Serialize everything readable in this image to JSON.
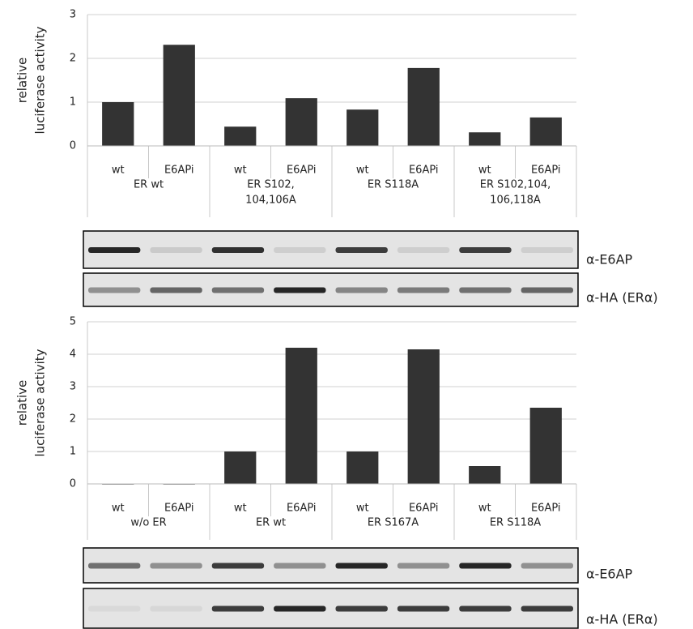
{
  "chart_data": [
    {
      "type": "bar",
      "ylabel": [
        "relative",
        "luciferase activity"
      ],
      "categories": [
        "wt",
        "E6APi",
        "wt",
        "E6APi",
        "wt",
        "E6APi",
        "wt",
        "E6APi"
      ],
      "groups": [
        [
          "ER wt"
        ],
        [
          "ER S102,",
          "104,106A"
        ],
        [
          "ER S118A"
        ],
        [
          "ER S102,104,",
          "106,118A"
        ]
      ],
      "values": [
        1.0,
        2.31,
        0.44,
        1.09,
        0.83,
        1.78,
        0.31,
        0.65
      ],
      "color": "#333333",
      "ylim": [
        0,
        3
      ],
      "yticks": [
        0,
        1,
        2,
        3
      ],
      "grid": true
    },
    {
      "type": "bar",
      "ylabel": [
        "relative",
        "luciferase activity"
      ],
      "categories": [
        "wt",
        "E6APi",
        "wt",
        "E6APi",
        "wt",
        "E6APi",
        "wt",
        "E6APi"
      ],
      "groups": [
        [
          "w/o ER"
        ],
        [
          "ER wt"
        ],
        [
          "ER S167A"
        ],
        [
          "ER S118A"
        ]
      ],
      "values": [
        0,
        0,
        1.0,
        4.2,
        1.0,
        4.15,
        0.55,
        2.35
      ],
      "color": "#333333",
      "ylim": [
        0,
        5
      ],
      "yticks": [
        0,
        1,
        2,
        3,
        4,
        5
      ],
      "grid": true
    }
  ],
  "blots": [
    {
      "labels": [
        "α-E6AP",
        "α-HA (ERα)"
      ]
    },
    {
      "labels": [
        "α-E6AP",
        "α-HA (ERα)"
      ]
    }
  ]
}
